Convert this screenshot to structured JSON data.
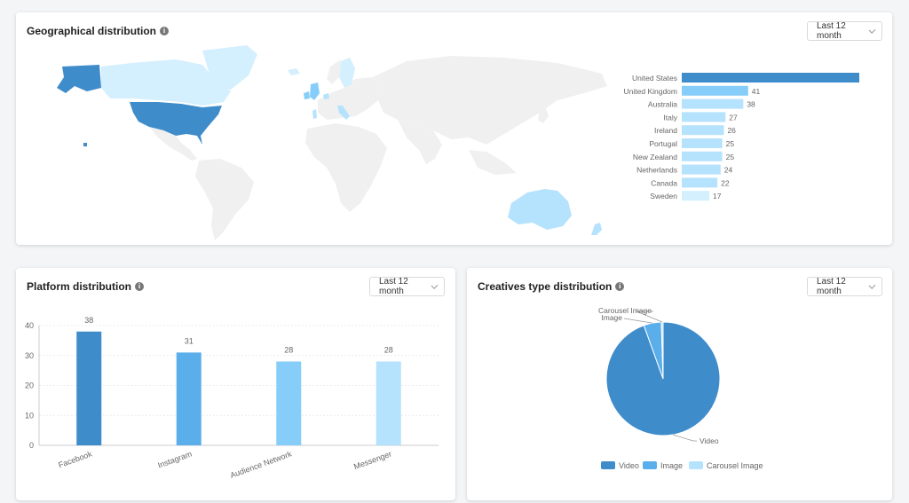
{
  "geo": {
    "title": "Geographical distribution",
    "info_icon": "i",
    "dropdown": "Last 12 month"
  },
  "platform": {
    "title": "Platform distribution",
    "info_icon": "i",
    "dropdown": "Last 12 month"
  },
  "creatives": {
    "title": "Creatives type distribution",
    "info_icon": "i",
    "dropdown": "Last 12 month"
  },
  "colors": {
    "dark_blue": "#3f8ccb",
    "mid_blue": "#5aaeea",
    "light_blue": "#86cdf9",
    "pale_blue": "#b5e2fc",
    "palest_blue": "#d4effd",
    "map_land": "#f0f0f0"
  },
  "chart_data": [
    {
      "type": "bar",
      "orientation": "horizontal",
      "categories": [
        "United States",
        "United Kingdom",
        "Australia",
        "Italy",
        "Ireland",
        "Portugal",
        "New Zealand",
        "Netherlands",
        "Canada",
        "Sweden"
      ],
      "values": [
        114,
        41,
        38,
        27,
        26,
        25,
        25,
        24,
        22,
        17
      ],
      "xlim": [
        0,
        114
      ]
    },
    {
      "type": "bar",
      "categories": [
        "Facebook",
        "Instagram",
        "Audience Network",
        "Messenger"
      ],
      "values": [
        38,
        31,
        28,
        28
      ],
      "yticks": [
        0,
        10,
        20,
        30,
        40
      ],
      "ylim": [
        0,
        40
      ],
      "grid": true
    },
    {
      "type": "pie",
      "labels": [
        "Video",
        "Image",
        "Carousel Image"
      ],
      "values": [
        94.5,
        5.0,
        0.5
      ],
      "legend": "bottom"
    }
  ]
}
